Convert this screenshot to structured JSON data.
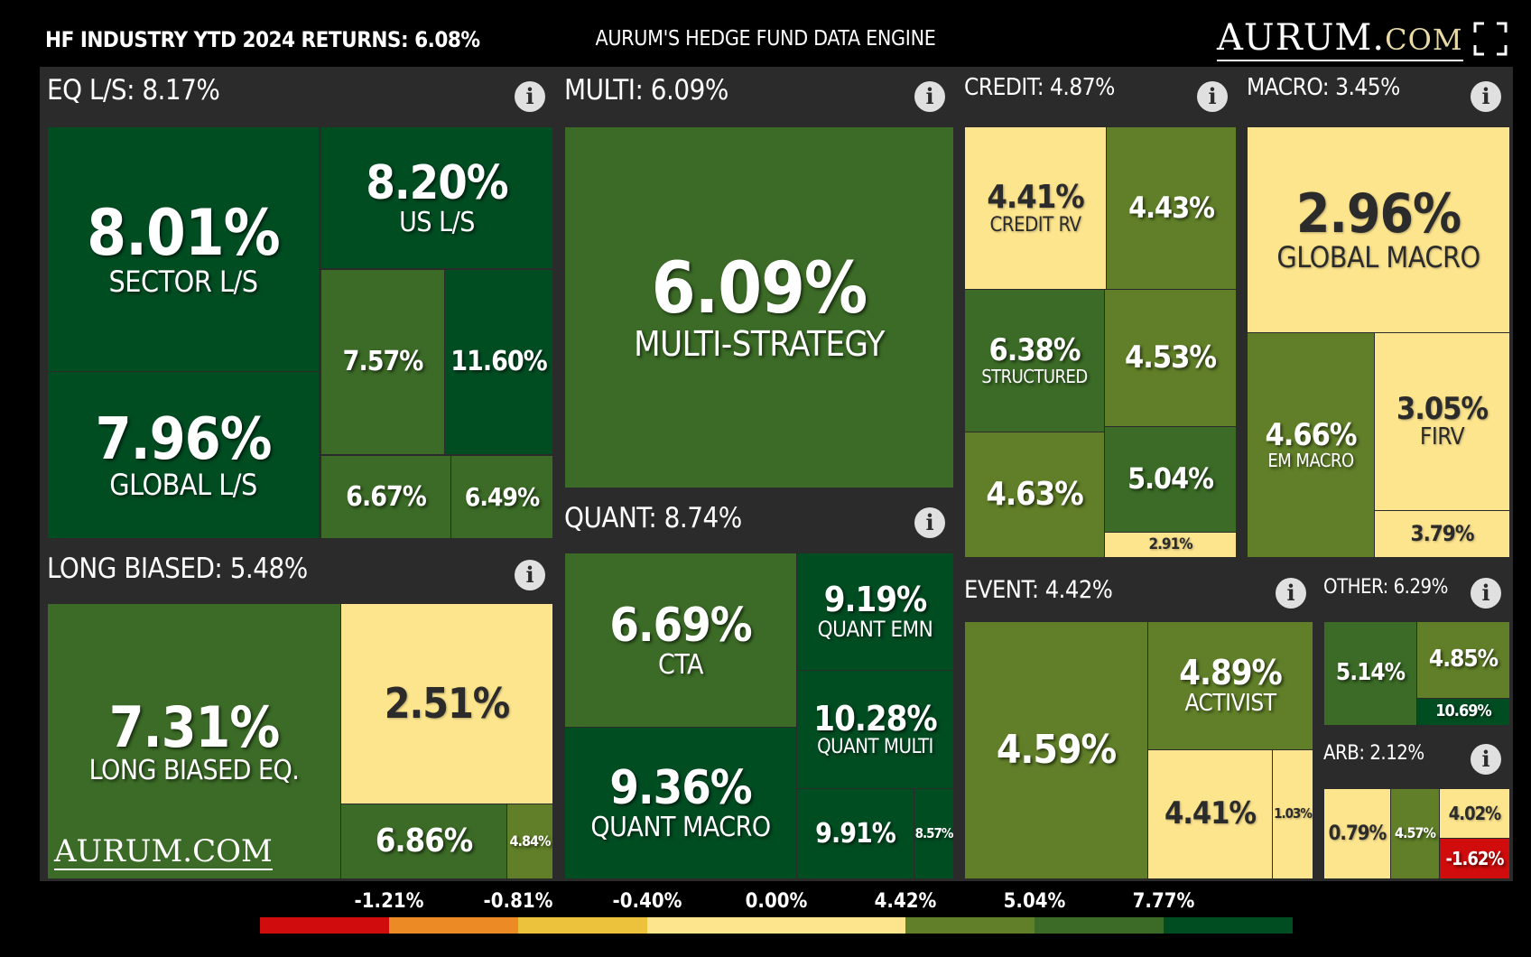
{
  "header": {
    "left_title": "HF INDUSTRY YTD 2024 RETURNS: 6.08%",
    "center_title": "AURUM'S HEDGE FUND DATA ENGINE",
    "logo_main": "AURUM.",
    "logo_suffix": "COM",
    "fullscreen_icon": "expand-icon"
  },
  "watermark": "AURUM.COM",
  "colors": {
    "dark_green": "#004d22",
    "mid_green": "#3b6b26",
    "olive": "#607f28",
    "pale_yellow": "#fde58e",
    "red": "#d10c0c",
    "background": "#2b2b2b"
  },
  "chart_data": {
    "type": "treemap",
    "title": "HF INDUSTRY YTD 2024 RETURNS: 6.08%",
    "groups": [
      {
        "name": "EQ L/S: 8.17%",
        "tiles": [
          {
            "value": "8.01%",
            "label": "SECTOR L/S"
          },
          {
            "value": "8.20%",
            "label": "US L/S"
          },
          {
            "value": "7.96%",
            "label": "GLOBAL L/S"
          },
          {
            "value": "7.57%",
            "label": ""
          },
          {
            "value": "11.60%",
            "label": ""
          },
          {
            "value": "6.67%",
            "label": ""
          },
          {
            "value": "6.49%",
            "label": ""
          }
        ]
      },
      {
        "name": "LONG BIASED: 5.48%",
        "tiles": [
          {
            "value": "7.31%",
            "label": "LONG BIASED EQ."
          },
          {
            "value": "2.51%",
            "label": ""
          },
          {
            "value": "6.86%",
            "label": ""
          },
          {
            "value": "4.84%",
            "label": ""
          }
        ]
      },
      {
        "name": "MULTI: 6.09%",
        "tiles": [
          {
            "value": "6.09%",
            "label": "MULTI-STRATEGY"
          }
        ]
      },
      {
        "name": "QUANT: 8.74%",
        "tiles": [
          {
            "value": "6.69%",
            "label": "CTA"
          },
          {
            "value": "9.19%",
            "label": "QUANT EMN"
          },
          {
            "value": "10.28%",
            "label": "QUANT MULTI"
          },
          {
            "value": "9.36%",
            "label": "QUANT MACRO"
          },
          {
            "value": "9.91%",
            "label": ""
          },
          {
            "value": "8.57%",
            "label": ""
          }
        ]
      },
      {
        "name": "CREDIT: 4.87%",
        "tiles": [
          {
            "value": "4.41%",
            "label": "CREDIT RV"
          },
          {
            "value": "4.43%",
            "label": ""
          },
          {
            "value": "6.38%",
            "label": "STRUCTURED"
          },
          {
            "value": "4.53%",
            "label": ""
          },
          {
            "value": "4.63%",
            "label": ""
          },
          {
            "value": "5.04%",
            "label": ""
          },
          {
            "value": "2.91%",
            "label": ""
          }
        ]
      },
      {
        "name": "MACRO: 3.45%",
        "tiles": [
          {
            "value": "2.96%",
            "label": "GLOBAL MACRO"
          },
          {
            "value": "4.66%",
            "label": "EM MACRO"
          },
          {
            "value": "3.05%",
            "label": "FIRV"
          },
          {
            "value": "3.79%",
            "label": ""
          }
        ]
      },
      {
        "name": "EVENT: 4.42%",
        "tiles": [
          {
            "value": "4.59%",
            "label": ""
          },
          {
            "value": "4.89%",
            "label": "ACTIVIST"
          },
          {
            "value": "4.41%",
            "label": ""
          },
          {
            "value": "1.03%",
            "label": ""
          }
        ]
      },
      {
        "name": "OTHER: 6.29%",
        "tiles": [
          {
            "value": "5.14%",
            "label": ""
          },
          {
            "value": "4.85%",
            "label": ""
          },
          {
            "value": "10.69%",
            "label": ""
          }
        ]
      },
      {
        "name": "ARB: 2.12%",
        "tiles": [
          {
            "value": "0.79%",
            "label": ""
          },
          {
            "value": "4.57%",
            "label": ""
          },
          {
            "value": "4.02%",
            "label": ""
          },
          {
            "value": "-1.62%",
            "label": ""
          }
        ]
      }
    ],
    "legend": {
      "ticks": [
        "-1.21%",
        "-0.81%",
        "-0.40%",
        "0.00%",
        "4.42%",
        "5.04%",
        "7.77%"
      ],
      "colors": [
        "#d10c0c",
        "#ec8a25",
        "#ecc13c",
        "#fde58e",
        "#fde58e",
        "#607f28",
        "#3b6b26",
        "#004d22"
      ]
    }
  }
}
